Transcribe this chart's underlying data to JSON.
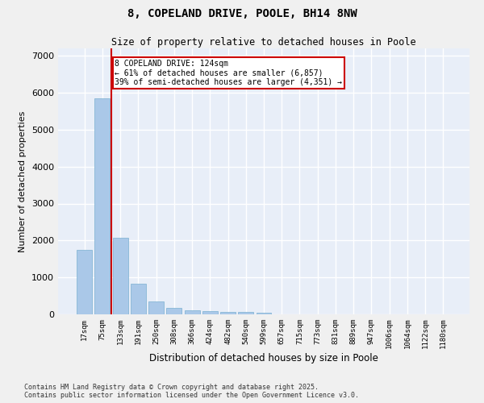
{
  "title": "8, COPELAND DRIVE, POOLE, BH14 8NW",
  "subtitle": "Size of property relative to detached houses in Poole",
  "xlabel": "Distribution of detached houses by size in Poole",
  "ylabel": "Number of detached properties",
  "categories": [
    "17sqm",
    "75sqm",
    "133sqm",
    "191sqm",
    "250sqm",
    "308sqm",
    "366sqm",
    "424sqm",
    "482sqm",
    "540sqm",
    "599sqm",
    "657sqm",
    "715sqm",
    "773sqm",
    "831sqm",
    "889sqm",
    "947sqm",
    "1006sqm",
    "1064sqm",
    "1122sqm",
    "1180sqm"
  ],
  "values": [
    1750,
    5850,
    2080,
    820,
    340,
    175,
    110,
    90,
    75,
    55,
    40,
    0,
    0,
    0,
    0,
    0,
    0,
    0,
    0,
    0,
    0
  ],
  "bar_color": "#aac8e8",
  "bar_edge_color": "#7aafd0",
  "vline_color": "#cc0000",
  "vline_index": 1.5,
  "annotation_text": "8 COPELAND DRIVE: 124sqm\n← 61% of detached houses are smaller (6,857)\n39% of semi-detached houses are larger (4,351) →",
  "ylim": [
    0,
    7200
  ],
  "yticks": [
    0,
    1000,
    2000,
    3000,
    4000,
    5000,
    6000,
    7000
  ],
  "plot_bg_color": "#e8eef8",
  "fig_bg_color": "#f0f0f0",
  "grid_color": "#ffffff",
  "footer_line1": "Contains HM Land Registry data © Crown copyright and database right 2025.",
  "footer_line2": "Contains public sector information licensed under the Open Government Licence v3.0."
}
